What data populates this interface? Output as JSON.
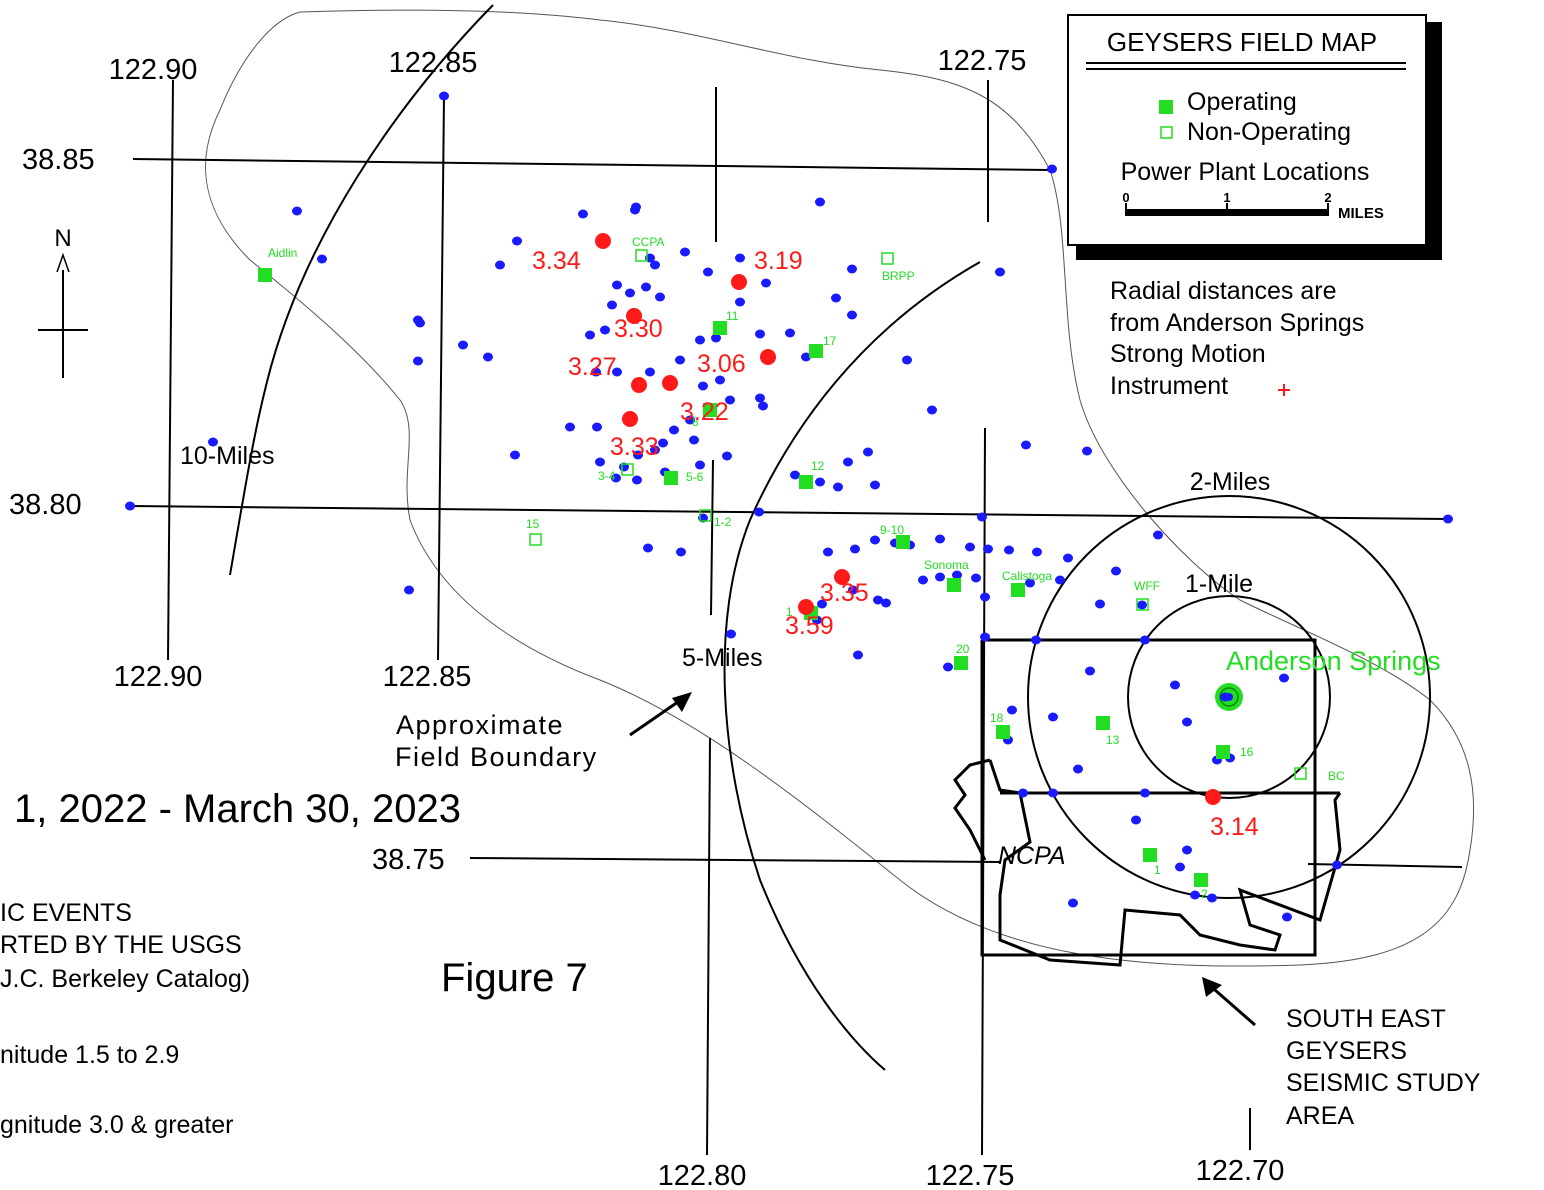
{
  "map": {
    "title": "GEYSERS FIELD MAP",
    "legend": {
      "operating": "Operating",
      "non_operating": "Non-Operating",
      "caption": "Power Plant Locations",
      "scale_ticks": [
        "0",
        "1",
        "2"
      ],
      "scale_unit": "MILES"
    },
    "radial_note": [
      "Radial distances are",
      "from Anderson Springs",
      "Strong Motion",
      "Instrument"
    ],
    "north": "N",
    "lon_labels_top": [
      "122.90",
      "122.85",
      "122.75"
    ],
    "lon_labels_mid": [
      "122.90",
      "122.85"
    ],
    "lon_labels_bottom": [
      "122.80",
      "122.75",
      "122.70"
    ],
    "lat_labels": [
      "38.85",
      "38.80",
      "38.75"
    ],
    "ring_labels": {
      "ten_miles": "10-Miles",
      "five_miles": "5-Miles",
      "two_miles": "2-Miles",
      "one_mile": "1-Mile"
    },
    "place_labels": {
      "anderson_springs": "Anderson Springs",
      "ncpa": "NCPA",
      "boundary": [
        "Approximate",
        "Field Boundary"
      ],
      "study_area": [
        "SOUTH EAST",
        "GEYSERS",
        "SEISMIC STUDY",
        "AREA"
      ]
    },
    "date_range": "1, 2022 - March 30, 2023",
    "events_caption": [
      "IC EVENTS",
      "RTED BY THE USGS",
      "J.C. Berkeley Catalog)"
    ],
    "small_magnitude": "nitude 1.5 to 2.9",
    "large_magnitude": "gnitude 3.0 & greater",
    "figure_label": "Figure 7",
    "plant_labels": [
      "Aidlin",
      "CCPA",
      "BRPP",
      "11",
      "17",
      "8",
      "5-6",
      "3-4",
      "12",
      "1-2",
      "15",
      "9-10",
      "Sonoma",
      "Calistoga",
      "WFF",
      "1",
      "20",
      "18",
      "13",
      "16",
      "BC",
      "1",
      "2"
    ],
    "magnitude_labels": [
      "3.34",
      "3.19",
      "3.30",
      "3.27",
      "3.06",
      "3.22",
      "3.33",
      "3.35",
      "3.59",
      "3.14"
    ],
    "colors": {
      "events": "#1a1aff",
      "large_events": "#ff1a1a",
      "plants": "#22dd22",
      "lines": "#000000",
      "boundary": "#555555"
    }
  }
}
